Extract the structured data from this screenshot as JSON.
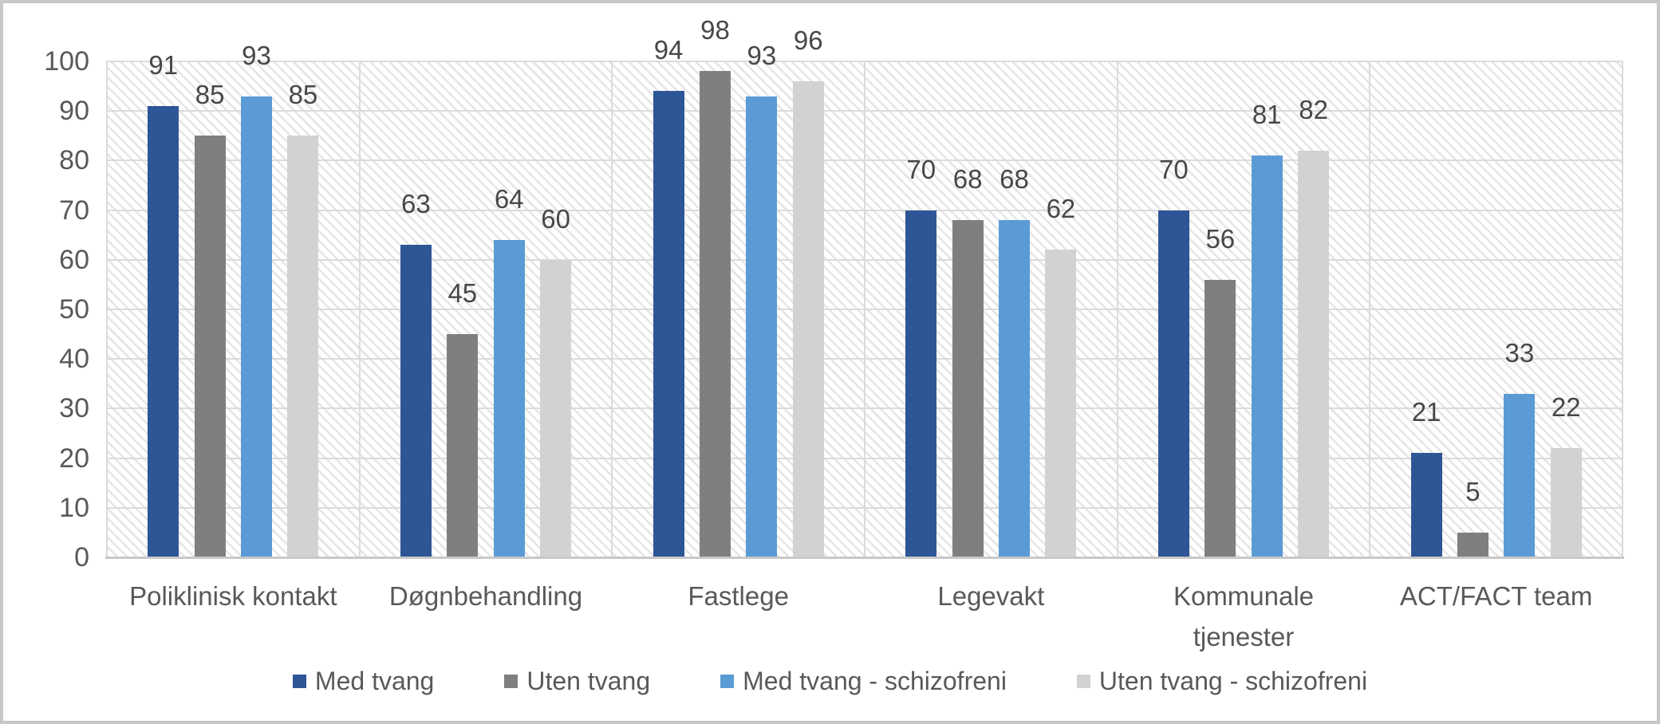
{
  "chart_data": {
    "type": "bar",
    "title": "",
    "xlabel": "",
    "ylabel": "",
    "categories": [
      "Poliklinisk kontakt",
      "Døgnbehandling",
      "Fastlege",
      "Legevakt",
      "Kommunale\ntjenester",
      "ACT/FACT team"
    ],
    "series": [
      {
        "name": "Med tvang",
        "color": "#2e5596",
        "values": [
          91,
          63,
          94,
          70,
          70,
          21
        ]
      },
      {
        "name": "Uten tvang",
        "color": "#7f7f7f",
        "values": [
          85,
          45,
          98,
          68,
          56,
          5
        ]
      },
      {
        "name": "Med tvang - schizofreni",
        "color": "#5b9bd5",
        "values": [
          93,
          64,
          93,
          68,
          81,
          33
        ]
      },
      {
        "name": "Uten tvang - schizofreni",
        "color": "#d2d2d2",
        "values": [
          85,
          60,
          96,
          62,
          82,
          22
        ]
      }
    ],
    "ylim": [
      0,
      100
    ],
    "yticks": [
      0,
      10,
      20,
      30,
      40,
      50,
      60,
      70,
      80,
      90,
      100
    ],
    "grid": true,
    "gridlines": "horizontal every 10 and vertical between category groups",
    "plot_background": "light diagonal hatch pattern",
    "legend_position": "bottom",
    "data_labels": "value shown above each bar"
  },
  "style": {
    "grid_color": "#dbdbdb",
    "hatch_color": "#e5e5e5",
    "axis_line_color": "#c9c9c9",
    "outer_border_color": "#c8c8c8",
    "tick_text_color": "#595959",
    "value_label_color": "#474747",
    "background": "#ffffff"
  }
}
